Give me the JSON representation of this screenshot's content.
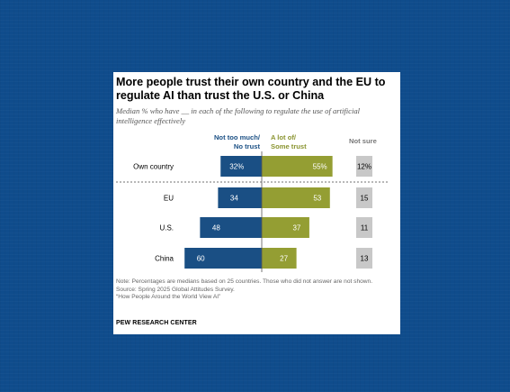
{
  "title": "More people trust their own country and the EU to regulate AI than trust the U.S. or China",
  "subtitle": "Median % who have __ in each of the following to regulate the use of artificial intelligence effectively",
  "columns": {
    "distrust": [
      "Not too much/",
      "No trust"
    ],
    "trust": [
      "A lot of/",
      "Some trust"
    ],
    "not_sure": "Not sure"
  },
  "colors": {
    "distrust": "#1a4f84",
    "trust": "#949e33",
    "not_sure": "#c8c8c8",
    "distrust_header": "#1a4f84",
    "trust_header": "#8a9430",
    "not_sure_header": "#777777"
  },
  "chart_data": {
    "type": "bar",
    "categories": [
      "Own country",
      "EU",
      "U.S.",
      "China"
    ],
    "series": [
      {
        "name": "Not too much/No trust",
        "values": [
          32,
          34,
          48,
          60
        ],
        "labels": [
          "32%",
          "34",
          "48",
          "60"
        ]
      },
      {
        "name": "A lot of/Some trust",
        "values": [
          55,
          53,
          37,
          27
        ],
        "labels": [
          "55%",
          "53",
          "37",
          "27"
        ]
      },
      {
        "name": "Not sure",
        "values": [
          12,
          15,
          11,
          13
        ],
        "labels": [
          "12%",
          "15",
          "11",
          "13"
        ]
      }
    ]
  },
  "note": {
    "line1": "Note: Percentages are medians based on 25 countries. Those who did not answer are not shown.",
    "line2": "Source: Spring 2025 Global Attitudes Survey.",
    "line3": "“How People Around the World View AI”"
  },
  "source_org": "PEW RESEARCH CENTER"
}
